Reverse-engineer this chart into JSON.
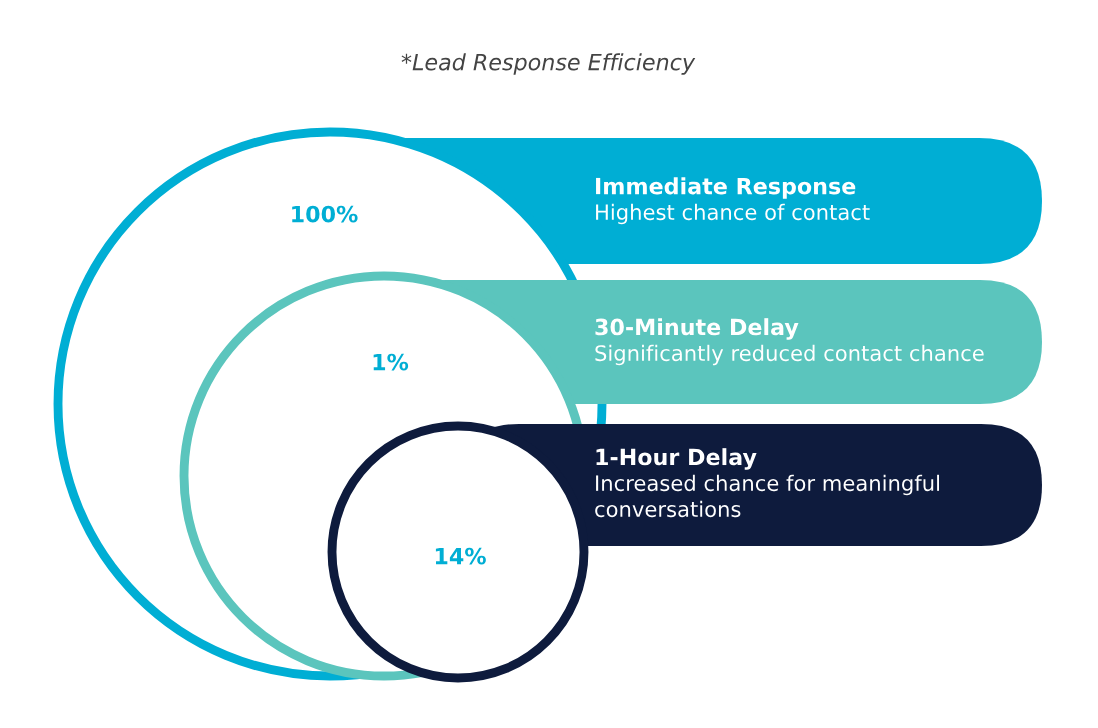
{
  "chart_data": {
    "type": "other",
    "title": "*Lead Response Efficiency",
    "categories": [
      "Immediate Response",
      "30-Minute Delay",
      "1-Hour Delay"
    ],
    "values": [
      100,
      1,
      14
    ],
    "value_labels": [
      "100%",
      "1%",
      "14%"
    ],
    "colors": [
      "#00aed4",
      "#5bc5bd",
      "#0e1b3d"
    ],
    "annotations": [
      "Highest chance of contact",
      "Significantly reduced contact chance",
      "Increased chance for meaningful conversations"
    ]
  }
}
